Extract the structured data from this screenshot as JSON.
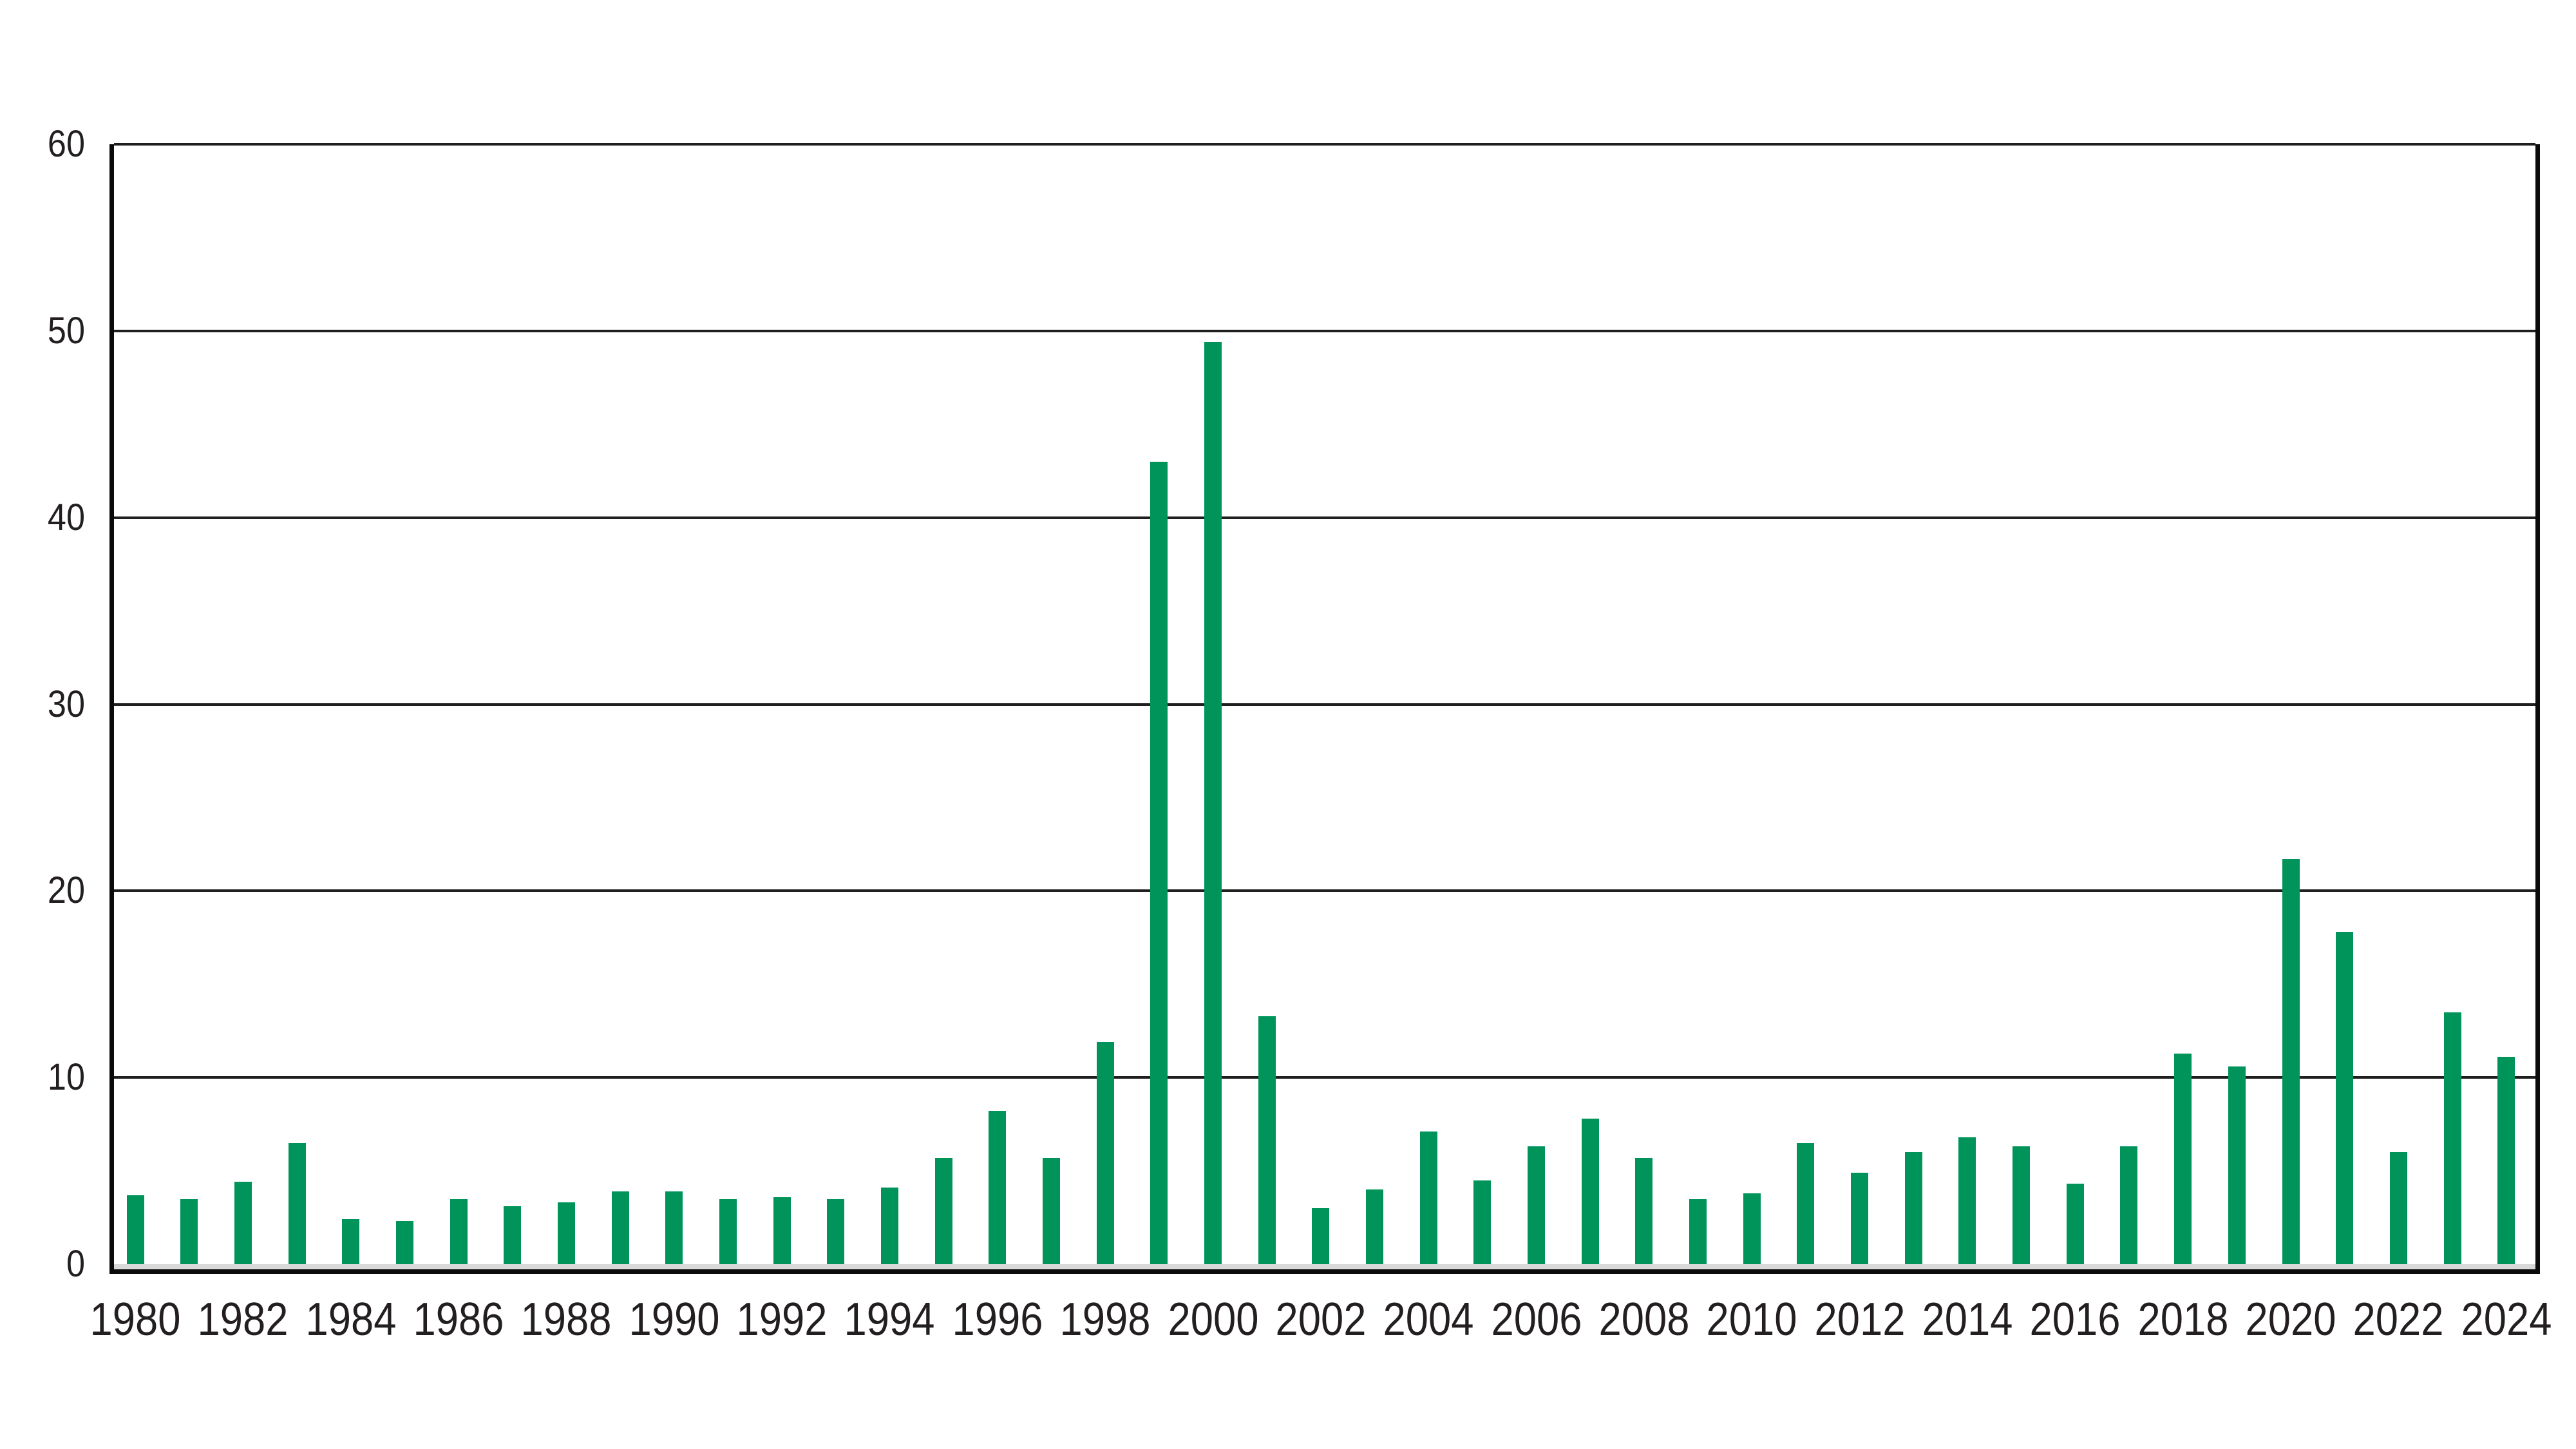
{
  "chart_data": {
    "type": "bar",
    "title": "",
    "xlabel": "",
    "ylabel": "",
    "ylim": [
      0,
      60
    ],
    "y_ticks": [
      0,
      10,
      20,
      30,
      40,
      50,
      60
    ],
    "grid": "horizontal",
    "legend": "none",
    "bar_color": "#00945a",
    "categories": [
      1980,
      1981,
      1982,
      1983,
      1984,
      1985,
      1986,
      1987,
      1988,
      1989,
      1990,
      1991,
      1992,
      1993,
      1994,
      1995,
      1996,
      1997,
      1998,
      1999,
      2000,
      2001,
      2002,
      2003,
      2004,
      2005,
      2006,
      2007,
      2008,
      2009,
      2010,
      2011,
      2012,
      2013,
      2014,
      2015,
      2016,
      2017,
      2018,
      2019,
      2020,
      2021,
      2022,
      2023,
      2024
    ],
    "values": [
      3.7,
      3.5,
      4.4,
      6.5,
      2.4,
      2.3,
      3.5,
      3.1,
      3.3,
      3.9,
      3.9,
      3.5,
      3.6,
      3.5,
      4.1,
      5.7,
      8.2,
      5.7,
      11.9,
      43.0,
      49.4,
      13.3,
      3.0,
      4.0,
      7.1,
      4.5,
      6.3,
      7.8,
      5.7,
      3.5,
      3.8,
      6.5,
      4.9,
      6.0,
      6.8,
      6.3,
      4.3,
      6.3,
      11.3,
      10.6,
      21.7,
      17.8,
      6.0,
      13.5,
      11.1
    ],
    "x_tick_labels": [
      "1980",
      "1982",
      "1984",
      "1986",
      "1988",
      "1990",
      "1992",
      "1994",
      "1996",
      "1998",
      "2000",
      "2002",
      "2004",
      "2006",
      "2008",
      "2010",
      "2012",
      "2014",
      "2016",
      "2018",
      "2020",
      "2022",
      "2024"
    ]
  },
  "colors": {
    "background": "#ffffff",
    "bar": "#00945a",
    "gridline": "#1f1f1f",
    "axis_frame": "#0a0a0a",
    "zero_strip": "#d9d9d9",
    "tick_text": "#231f20"
  }
}
